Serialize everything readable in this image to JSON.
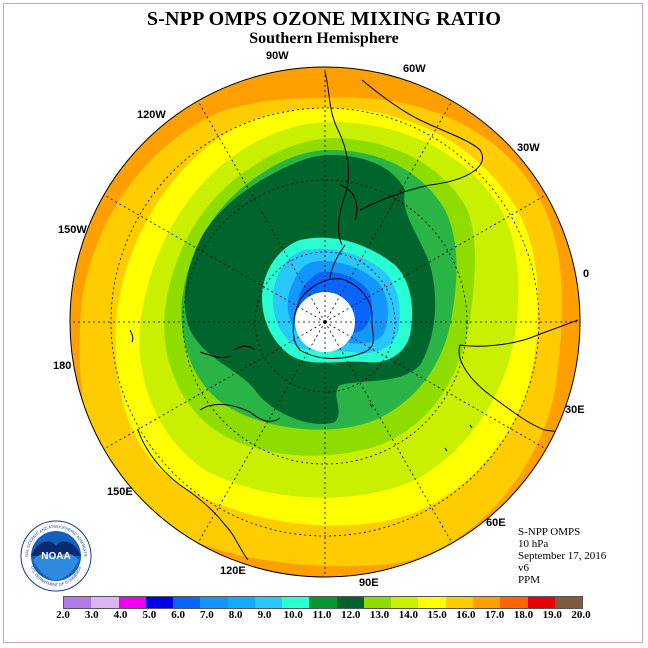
{
  "header": {
    "title": "S-NPP OMPS OZONE MIXING RATIO",
    "subtitle": "Southern Hemisphere"
  },
  "map": {
    "projection": "south-polar-stereographic",
    "longitude_labels": [
      "90W",
      "60W",
      "30W",
      "0",
      "30E",
      "60E",
      "90E",
      "120E",
      "150E",
      "180",
      "150W",
      "120W"
    ],
    "colors": {
      "very_low": "#ffffff",
      "low_blue": "#0a64ff",
      "mid_blue": "#1496ff",
      "light_blue": "#28c8ff",
      "cyan": "#28ffd2",
      "green": "#0a9632",
      "dark_green": "#00642d",
      "mid_green": "#2ab446",
      "lime": "#8fdc00",
      "yellow_green": "#c8f000",
      "yellow": "#ffff00",
      "gold": "#ffcc00",
      "orange": "#ffa000",
      "coast": "#000000"
    }
  },
  "info": {
    "instrument": "S-NPP OMPS",
    "level": "10 hPa",
    "date": "September 17, 2016",
    "version": "v6",
    "units": "PPM"
  },
  "colorbar": {
    "colors": [
      "#b27ae6",
      "#dcb4f0",
      "#f000f0",
      "#0000e6",
      "#0a64ff",
      "#1496ff",
      "#14aaff",
      "#28c8ff",
      "#28ffd2",
      "#0a9632",
      "#00642d",
      "#8fdc00",
      "#c8f000",
      "#ffff00",
      "#ffcc00",
      "#ffa000",
      "#ff6400",
      "#e60000",
      "#825a3c"
    ],
    "ticks": [
      "2.0",
      "3.0",
      "4.0",
      "5.0",
      "6.0",
      "7.0",
      "8.0",
      "9.0",
      "10.0",
      "11.0",
      "12.0",
      "13.0",
      "14.0",
      "15.0",
      "16.0",
      "17.0",
      "18.0",
      "19.0",
      "20.0"
    ]
  },
  "logo": {
    "text": "NOAA",
    "ring_text": "NATIONAL OCEANIC AND ATMOSPHERIC ADMINISTRATION",
    "bottom_text": "U.S. DEPARTMENT OF COMMERCE"
  }
}
